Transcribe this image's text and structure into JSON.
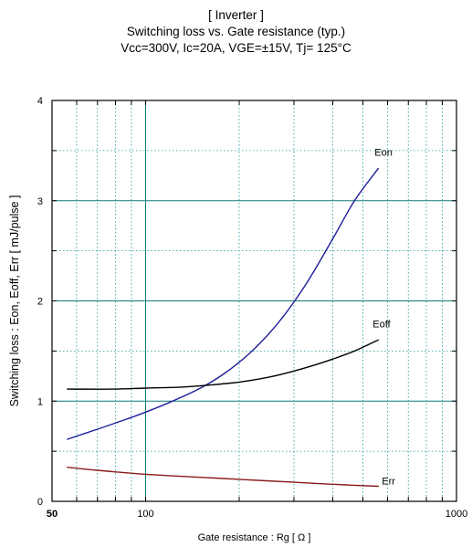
{
  "header": {
    "line1": "[ Inverter ]",
    "line2": "Switching loss  vs.  Gate resistance (typ.)",
    "line3": "Vcc=300V, Ic=20A, VGE=±15V, Tj= 125°C"
  },
  "chart_data": {
    "type": "line",
    "title": "[ Inverter ] Switching loss  vs.  Gate resistance (typ.)",
    "subtitle": "Vcc=300V, Ic=20A, VGE=±15V, Tj= 125°C",
    "xlabel": "Gate resistance  :  Rg  [ Ω ]",
    "ylabel": "Switching loss  :  Eon, Eoff, Err  [ mJ/pulse ]",
    "x_scale": "log",
    "xlim": [
      50,
      1000
    ],
    "ylim": [
      0,
      4
    ],
    "x_ticks": [
      {
        "value": 50,
        "label": "50"
      },
      {
        "value": 100,
        "label": "100"
      },
      {
        "value": 1000,
        "label": "1000"
      }
    ],
    "y_ticks": [
      {
        "value": 0,
        "label": "0"
      },
      {
        "value": 1,
        "label": "1"
      },
      {
        "value": 2,
        "label": "2"
      },
      {
        "value": 3,
        "label": "3"
      },
      {
        "value": 4,
        "label": "4"
      }
    ],
    "grid": true,
    "series": [
      {
        "name": "Eon",
        "color": "#1f1f9a",
        "x": [
          56,
          70,
          85,
          100,
          120,
          150,
          180,
          220,
          270,
          330,
          400,
          470,
          560
        ],
        "y": [
          0.62,
          0.72,
          0.81,
          0.89,
          0.99,
          1.13,
          1.28,
          1.5,
          1.8,
          2.18,
          2.62,
          3.0,
          3.32
        ]
      },
      {
        "name": "Eoff",
        "color": "#000000",
        "x": [
          56,
          80,
          100,
          130,
          160,
          200,
          250,
          300,
          350,
          400,
          470,
          560
        ],
        "y": [
          1.12,
          1.12,
          1.13,
          1.14,
          1.16,
          1.19,
          1.24,
          1.3,
          1.36,
          1.42,
          1.5,
          1.61
        ]
      },
      {
        "name": "Err",
        "color": "#8b1a1a",
        "x": [
          56,
          70,
          100,
          150,
          200,
          300,
          400,
          560
        ],
        "y": [
          0.34,
          0.31,
          0.27,
          0.24,
          0.22,
          0.19,
          0.17,
          0.15
        ]
      }
    ]
  }
}
